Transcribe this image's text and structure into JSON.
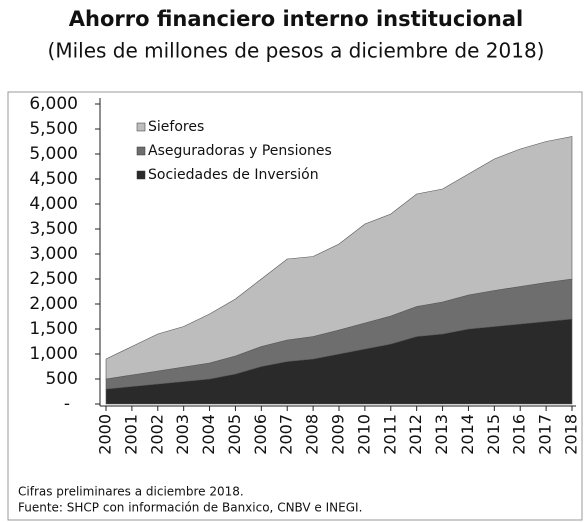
{
  "chart_data": {
    "type": "area",
    "title": "Ahorro financiero interno institucional",
    "subtitle": "(Miles de millones de pesos a diciembre de 2018)",
    "x": [
      2000,
      2001,
      2002,
      2003,
      2004,
      2005,
      2006,
      2007,
      2008,
      2009,
      2010,
      2011,
      2012,
      2013,
      2014,
      2015,
      2016,
      2017,
      2018
    ],
    "xlim": [
      2000,
      2018
    ],
    "xticks": [
      2000,
      2001,
      2002,
      2003,
      2004,
      2005,
      2006,
      2007,
      2008,
      2009,
      2010,
      2011,
      2012,
      2013,
      2014,
      2015,
      2016,
      2017,
      2018
    ],
    "ylim": [
      0,
      6000
    ],
    "yticks": [
      {
        "value": 0,
        "label": "-"
      },
      500,
      {
        "value": 1000,
        "label": "1,000"
      },
      {
        "value": 1500,
        "label": "1,500"
      },
      {
        "value": 2000,
        "label": "2,000"
      },
      {
        "value": 2500,
        "label": "2,500"
      },
      {
        "value": 3000,
        "label": "3,000"
      },
      {
        "value": 3500,
        "label": "3,500"
      },
      {
        "value": 4000,
        "label": "4,000"
      },
      {
        "value": 4500,
        "label": "4,500"
      },
      {
        "value": 5000,
        "label": "5,000"
      },
      {
        "value": 5500,
        "label": "5,500"
      },
      {
        "value": 6000,
        "label": "6,000"
      }
    ],
    "stacked": true,
    "series": [
      {
        "name": "Siefores",
        "color": "#bdbdbd",
        "values": [
          400,
          570,
          740,
          810,
          980,
          1140,
          1350,
          1620,
          1600,
          1720,
          1980,
          2040,
          2250,
          2260,
          2420,
          2630,
          2750,
          2820,
          2850
        ]
      },
      {
        "name": "Aseguradoras y Pensiones",
        "color": "#6e6e6e",
        "values": [
          200,
          230,
          260,
          290,
          320,
          360,
          400,
          430,
          450,
          480,
          520,
          560,
          600,
          640,
          680,
          720,
          750,
          780,
          800
        ]
      },
      {
        "name": "Sociedades de Inversión",
        "color": "#2a2a2a",
        "values": [
          300,
          350,
          400,
          450,
          500,
          600,
          750,
          850,
          900,
          1000,
          1100,
          1200,
          1350,
          1400,
          1500,
          1550,
          1600,
          1650,
          1700
        ]
      }
    ],
    "notes": [
      "Cifras preliminares a  diciembre 2018.",
      "Fuente: SHCP con información de Banxico, CNBV e INEGI."
    ]
  }
}
